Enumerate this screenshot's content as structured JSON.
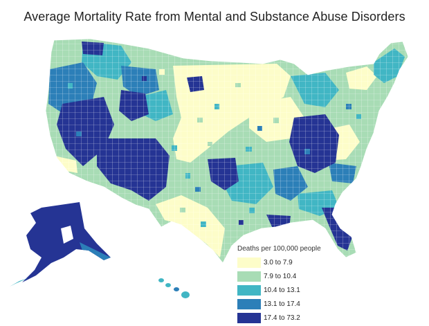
{
  "title": "Average Mortality Rate from Mental and Substance Abuse Disorders",
  "legend": {
    "title": "Deaths per 100,000 people",
    "items": [
      {
        "label": "3.0 to 7.9",
        "color": "#fdfdc9"
      },
      {
        "label": "7.9 to 10.4",
        "color": "#a8dcb5"
      },
      {
        "label": "10.4 to 13.1",
        "color": "#41b6c4"
      },
      {
        "label": "13.1 to 17.4",
        "color": "#2c7fb8"
      },
      {
        "label": "17.4 to 73.2",
        "color": "#253494"
      }
    ]
  },
  "colors": {
    "background": "#ffffff",
    "border": "#ffffff"
  }
}
